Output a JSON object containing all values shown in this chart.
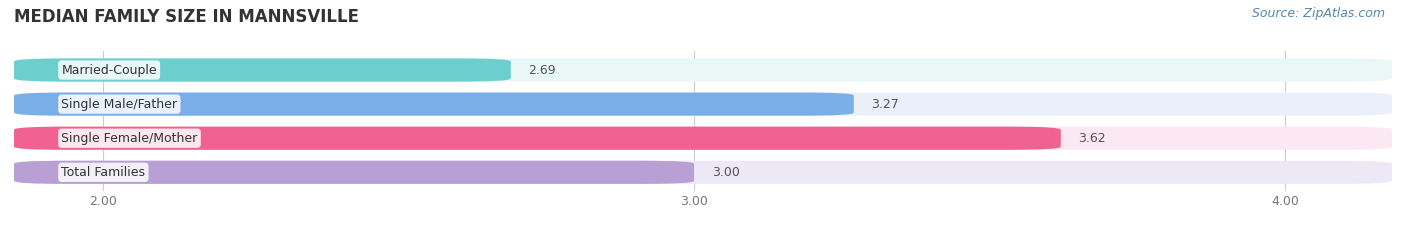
{
  "title": "MEDIAN FAMILY SIZE IN MANNSVILLE",
  "source": "Source: ZipAtlas.com",
  "categories": [
    "Married-Couple",
    "Single Male/Father",
    "Single Female/Mother",
    "Total Families"
  ],
  "values": [
    2.69,
    3.27,
    3.62,
    3.0
  ],
  "bar_colors": [
    "#6dcece",
    "#7aaee8",
    "#f06292",
    "#b8a0d4"
  ],
  "bar_bg_colors": [
    "#eaf7f7",
    "#eaf0fa",
    "#fce8f2",
    "#ede8f5"
  ],
  "xmin": 1.85,
  "xmax": 4.18,
  "xlim": [
    1.85,
    4.18
  ],
  "xticks": [
    2.0,
    3.0,
    4.0
  ],
  "xtick_labels": [
    "2.00",
    "3.00",
    "4.00"
  ],
  "figsize": [
    14.06,
    2.33
  ],
  "dpi": 100,
  "title_fontsize": 12,
  "label_fontsize": 9,
  "value_fontsize": 9,
  "source_fontsize": 9,
  "bar_height": 0.68,
  "bar_gap": 0.32,
  "bg_color": "#ffffff"
}
